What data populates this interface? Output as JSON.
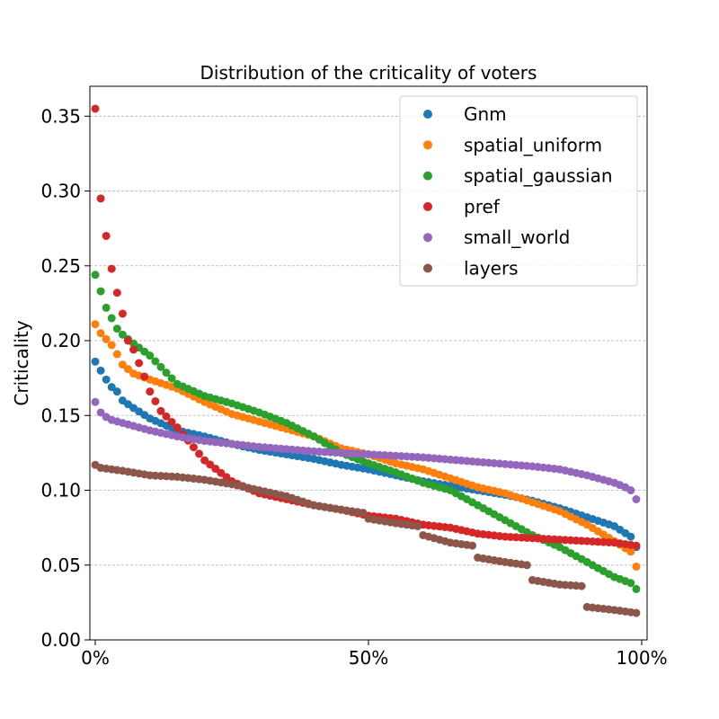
{
  "chart_data": {
    "type": "scatter",
    "title": "Distribution of the criticality of voters",
    "xlabel": "",
    "ylabel": "Criticality",
    "xlim": [
      0,
      100
    ],
    "ylim": [
      0,
      0.37
    ],
    "x_ticks": [
      0,
      50,
      100
    ],
    "x_tick_labels": [
      "0%",
      "50%",
      "100%"
    ],
    "y_ticks": [
      0,
      0.05,
      0.1,
      0.15,
      0.2,
      0.25,
      0.3,
      0.35
    ],
    "y_tick_labels": [
      "0.00",
      "0.05",
      "0.10",
      "0.15",
      "0.20",
      "0.25",
      "0.30",
      "0.35"
    ],
    "grid": "horizontal-dashed",
    "legend_position": "top-right",
    "series": [
      {
        "name": "Gnm",
        "color": "#1f77b4",
        "anchors": [
          [
            0,
            0.186
          ],
          [
            1,
            0.18
          ],
          [
            2,
            0.174
          ],
          [
            3,
            0.169
          ],
          [
            4,
            0.166
          ],
          [
            5,
            0.16
          ],
          [
            7,
            0.155
          ],
          [
            10,
            0.148
          ],
          [
            15,
            0.14
          ],
          [
            20,
            0.136
          ],
          [
            25,
            0.131
          ],
          [
            30,
            0.127
          ],
          [
            35,
            0.124
          ],
          [
            40,
            0.121
          ],
          [
            45,
            0.117
          ],
          [
            50,
            0.114
          ],
          [
            55,
            0.11
          ],
          [
            60,
            0.106
          ],
          [
            65,
            0.103
          ],
          [
            70,
            0.1
          ],
          [
            75,
            0.097
          ],
          [
            80,
            0.093
          ],
          [
            85,
            0.088
          ],
          [
            90,
            0.082
          ],
          [
            95,
            0.076
          ],
          [
            98,
            0.069
          ],
          [
            99,
            0.062
          ]
        ]
      },
      {
        "name": "spatial_uniform",
        "color": "#ff7f0e",
        "anchors": [
          [
            0,
            0.211
          ],
          [
            1,
            0.205
          ],
          [
            2,
            0.201
          ],
          [
            3,
            0.197
          ],
          [
            4,
            0.191
          ],
          [
            5,
            0.184
          ],
          [
            7,
            0.178
          ],
          [
            10,
            0.174
          ],
          [
            15,
            0.168
          ],
          [
            20,
            0.159
          ],
          [
            25,
            0.151
          ],
          [
            30,
            0.146
          ],
          [
            35,
            0.141
          ],
          [
            40,
            0.136
          ],
          [
            45,
            0.128
          ],
          [
            50,
            0.124
          ],
          [
            55,
            0.118
          ],
          [
            60,
            0.114
          ],
          [
            65,
            0.108
          ],
          [
            70,
            0.102
          ],
          [
            75,
            0.098
          ],
          [
            80,
            0.092
          ],
          [
            85,
            0.086
          ],
          [
            90,
            0.077
          ],
          [
            95,
            0.066
          ],
          [
            98,
            0.059
          ],
          [
            99,
            0.049
          ]
        ]
      },
      {
        "name": "spatial_gaussian",
        "color": "#2ca02c",
        "anchors": [
          [
            0,
            0.244
          ],
          [
            1,
            0.233
          ],
          [
            2,
            0.222
          ],
          [
            3,
            0.215
          ],
          [
            4,
            0.208
          ],
          [
            5,
            0.204
          ],
          [
            7,
            0.198
          ],
          [
            10,
            0.19
          ],
          [
            15,
            0.171
          ],
          [
            20,
            0.163
          ],
          [
            25,
            0.158
          ],
          [
            30,
            0.152
          ],
          [
            35,
            0.145
          ],
          [
            40,
            0.136
          ],
          [
            45,
            0.125
          ],
          [
            50,
            0.118
          ],
          [
            55,
            0.112
          ],
          [
            60,
            0.105
          ],
          [
            65,
            0.1
          ],
          [
            70,
            0.09
          ],
          [
            75,
            0.08
          ],
          [
            80,
            0.07
          ],
          [
            85,
            0.062
          ],
          [
            90,
            0.052
          ],
          [
            95,
            0.042
          ],
          [
            98,
            0.038
          ],
          [
            99,
            0.034
          ]
        ]
      },
      {
        "name": "pref",
        "color": "#d62728",
        "anchors": [
          [
            0,
            0.355
          ],
          [
            1,
            0.295
          ],
          [
            2,
            0.27
          ],
          [
            3,
            0.248
          ],
          [
            4,
            0.232
          ],
          [
            5,
            0.218
          ],
          [
            6,
            0.2
          ],
          [
            7,
            0.194
          ],
          [
            8,
            0.185
          ],
          [
            9,
            0.176
          ],
          [
            10,
            0.166
          ],
          [
            12,
            0.153
          ],
          [
            15,
            0.142
          ],
          [
            20,
            0.12
          ],
          [
            25,
            0.106
          ],
          [
            30,
            0.098
          ],
          [
            35,
            0.094
          ],
          [
            40,
            0.09
          ],
          [
            45,
            0.087
          ],
          [
            50,
            0.083
          ],
          [
            55,
            0.081
          ],
          [
            60,
            0.077
          ],
          [
            65,
            0.075
          ],
          [
            70,
            0.071
          ],
          [
            75,
            0.069
          ],
          [
            80,
            0.068
          ],
          [
            85,
            0.067
          ],
          [
            90,
            0.066
          ],
          [
            95,
            0.065
          ],
          [
            99,
            0.063
          ]
        ]
      },
      {
        "name": "small_world",
        "color": "#9467bd",
        "anchors": [
          [
            0,
            0.159
          ],
          [
            1,
            0.152
          ],
          [
            2,
            0.149
          ],
          [
            3,
            0.147
          ],
          [
            5,
            0.145
          ],
          [
            10,
            0.14
          ],
          [
            15,
            0.136
          ],
          [
            20,
            0.133
          ],
          [
            30,
            0.129
          ],
          [
            40,
            0.126
          ],
          [
            50,
            0.124
          ],
          [
            60,
            0.122
          ],
          [
            70,
            0.119
          ],
          [
            80,
            0.116
          ],
          [
            85,
            0.114
          ],
          [
            90,
            0.11
          ],
          [
            95,
            0.105
          ],
          [
            97,
            0.102
          ],
          [
            98,
            0.1
          ],
          [
            99,
            0.094
          ]
        ]
      },
      {
        "name": "layers",
        "color": "#8c564b",
        "anchors": [
          [
            0,
            0.117
          ],
          [
            1,
            0.115
          ],
          [
            5,
            0.113
          ],
          [
            10,
            0.11
          ],
          [
            15,
            0.109
          ],
          [
            20,
            0.107
          ],
          [
            25,
            0.104
          ],
          [
            30,
            0.1
          ],
          [
            35,
            0.096
          ],
          [
            40,
            0.09
          ],
          [
            45,
            0.087
          ],
          [
            49,
            0.085
          ],
          [
            50,
            0.081
          ],
          [
            55,
            0.078
          ],
          [
            59,
            0.076
          ],
          [
            60,
            0.07
          ],
          [
            65,
            0.065
          ],
          [
            69,
            0.063
          ],
          [
            70,
            0.055
          ],
          [
            75,
            0.052
          ],
          [
            79,
            0.05
          ],
          [
            80,
            0.04
          ],
          [
            85,
            0.037
          ],
          [
            89,
            0.036
          ],
          [
            90,
            0.022
          ],
          [
            95,
            0.02
          ],
          [
            99,
            0.018
          ]
        ]
      }
    ]
  }
}
